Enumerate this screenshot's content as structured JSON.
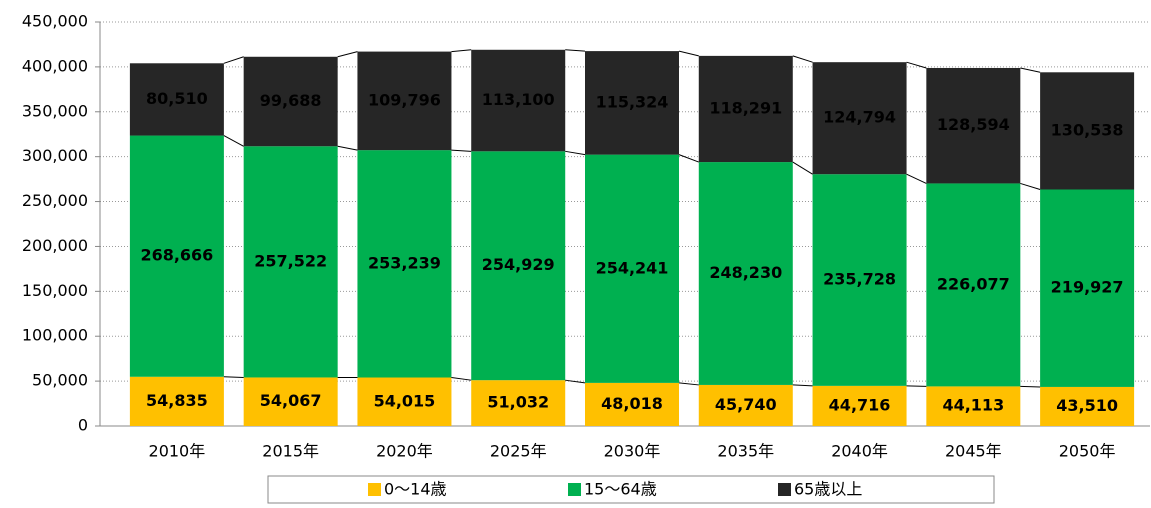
{
  "chart_data": {
    "type": "stacked_bar",
    "categories": [
      "2010年",
      "2015年",
      "2020年",
      "2025年",
      "2030年",
      "2035年",
      "2040年",
      "2045年",
      "2050年"
    ],
    "series": [
      {
        "name": "0〜14歳",
        "color": "#ffc000",
        "label_color": "#000000",
        "values": [
          54835,
          54067,
          54015,
          51032,
          48018,
          45740,
          44716,
          44113,
          43510
        ],
        "value_labels": [
          "54,835",
          "54,067",
          "54,015",
          "51,032",
          "48,018",
          "45,740",
          "44,716",
          "44,113",
          "43,510"
        ]
      },
      {
        "name": "15〜64歳",
        "color": "#00b050",
        "label_color": "#000000",
        "values": [
          268666,
          257522,
          253239,
          254929,
          254241,
          248230,
          235728,
          226077,
          219927
        ],
        "value_labels": [
          "268,666",
          "257,522",
          "253,239",
          "254,929",
          "254,241",
          "248,230",
          "235,728",
          "226,077",
          "219,927"
        ]
      },
      {
        "name": "65歳以上",
        "color": "#262626",
        "label_color": "#ffffff",
        "values": [
          80510,
          99688,
          109796,
          113100,
          115324,
          118291,
          124794,
          128594,
          130538
        ],
        "value_labels": [
          "80,510",
          "99,688",
          "109,796",
          "113,100",
          "115,324",
          "118,291",
          "124,794",
          "128,594",
          "130,538"
        ]
      }
    ],
    "ylim": [
      0,
      450000
    ],
    "yticks": [
      0,
      {
        "value": 50000,
        "label": "50,000"
      },
      {
        "value": 100000,
        "label": "100,000"
      },
      {
        "value": 150000,
        "label": "150,000"
      },
      {
        "value": 200000,
        "label": "200,000"
      },
      {
        "value": 250000,
        "label": "250,000"
      },
      {
        "value": 300000,
        "label": "300,000"
      },
      {
        "value": 350000,
        "label": "350,000"
      },
      {
        "value": 400000,
        "label": "400,000"
      },
      {
        "value": 450000,
        "label": "450,000"
      }
    ],
    "grid": true,
    "legend": "bottom"
  }
}
